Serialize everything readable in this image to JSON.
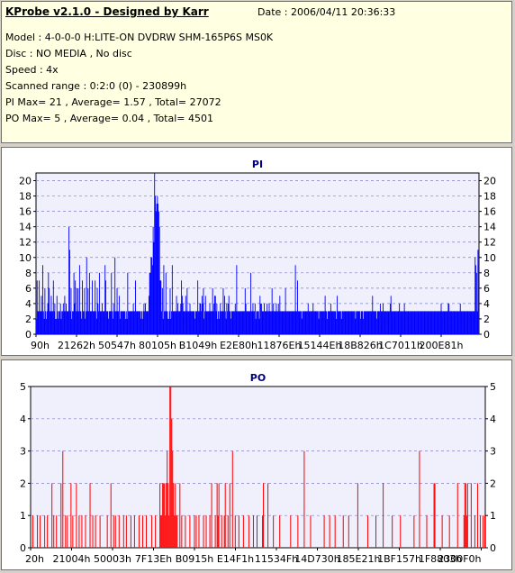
{
  "header": {
    "title": "KProbe v2.1.0 - Designed by Karr",
    "date": "Date : 2006/04/11 20:36:33",
    "model": "Model : 4-0-0-0 H:LITE-ON DVDRW SHM-165P6S MS0K",
    "disc": "Disc : NO MEDIA , No disc",
    "speed": "Speed : 4x",
    "scanned_range": "Scanned range : 0:2:0 (0) - 230899h",
    "pi_summary": "PI Max= 21 , Average= 1.57 , Total= 27072",
    "po_summary": "PO Max= 5 , Average= 0.04 , Total= 4501"
  },
  "chart_data": [
    {
      "type": "bar",
      "title": "PI",
      "ylim": [
        0,
        21
      ],
      "yticks": [
        0,
        2,
        4,
        6,
        8,
        10,
        12,
        14,
        16,
        18,
        20
      ],
      "x_tick_labels": [
        "90h",
        "21262h",
        "50547h",
        "80105h",
        "B1049h",
        "E2E80h",
        "11876Eh",
        "15144Eh",
        "18B826h",
        "1C7011h",
        "200E81h"
      ],
      "color": "#0000ff",
      "max": 21,
      "average": 1.57,
      "total": 27072,
      "grid": true,
      "values": [
        2,
        7,
        3,
        3,
        7,
        3,
        3,
        5,
        3,
        9,
        3,
        2,
        6,
        3,
        2,
        3,
        4,
        8,
        6,
        3,
        3,
        5,
        3,
        3,
        7,
        3,
        4,
        2,
        2,
        5,
        3,
        2,
        3,
        3,
        4,
        2,
        3,
        3,
        4,
        3,
        5,
        3,
        4,
        3,
        3,
        3,
        14,
        11,
        3,
        6,
        2,
        3,
        3,
        8,
        4,
        7,
        3,
        6,
        3,
        6,
        3,
        9,
        3,
        3,
        2,
        7,
        3,
        3,
        6,
        2,
        3,
        10,
        3,
        6,
        3,
        8,
        3,
        3,
        3,
        7,
        3,
        3,
        3,
        7,
        3,
        2,
        6,
        4,
        3,
        8,
        3,
        3,
        3,
        4,
        3,
        3,
        3,
        9,
        7,
        3,
        3,
        3,
        2,
        3,
        3,
        3,
        8,
        3,
        2,
        4,
        3,
        10,
        3,
        3,
        6,
        3,
        3,
        5,
        2,
        3,
        3,
        3,
        3,
        3,
        3,
        3,
        2,
        3,
        2,
        8,
        3,
        3,
        3,
        3,
        3,
        3,
        3,
        4,
        3,
        3,
        7,
        3,
        3,
        3,
        3,
        3,
        3,
        3,
        2,
        3,
        2,
        3,
        4,
        3,
        4,
        3,
        3,
        3,
        3,
        5,
        8,
        8,
        10,
        10,
        9,
        14,
        12,
        21,
        18,
        16,
        17,
        18,
        17,
        16,
        14,
        7,
        7,
        3,
        6,
        2,
        9,
        3,
        3,
        8,
        3,
        3,
        2,
        2,
        3,
        6,
        2,
        3,
        9,
        3,
        3,
        3,
        3,
        3,
        5,
        3,
        4,
        3,
        3,
        3,
        4,
        7,
        5,
        4,
        3,
        3,
        3,
        5,
        3,
        6,
        3,
        3,
        3,
        4,
        3,
        3,
        3,
        3,
        3,
        3,
        2,
        3,
        3,
        3,
        7,
        3,
        3,
        4,
        4,
        3,
        5,
        4,
        6,
        2,
        3,
        5,
        3,
        3,
        3,
        3,
        3,
        4,
        3,
        3,
        3,
        6,
        3,
        4,
        5,
        5,
        3,
        4,
        2,
        3,
        2,
        3,
        4,
        3,
        3,
        3,
        6,
        3,
        5,
        3,
        2,
        4,
        3,
        4,
        5,
        3,
        3,
        2,
        3,
        3,
        3,
        3,
        3,
        4,
        3,
        9,
        3,
        3,
        3,
        3,
        3,
        3,
        3,
        3,
        3,
        3,
        3,
        6,
        4,
        3,
        3,
        3,
        3,
        3,
        3,
        8,
        3,
        3,
        4,
        3,
        3,
        4,
        2,
        3,
        3,
        3,
        3,
        2,
        5,
        4,
        4,
        3,
        3,
        3,
        4,
        3,
        3,
        3,
        4,
        3,
        3,
        4,
        3,
        3,
        3,
        6,
        3,
        4,
        3,
        3,
        3,
        4,
        3,
        3,
        4,
        3,
        5,
        3,
        3,
        3,
        3,
        3,
        3,
        3,
        6,
        3,
        3,
        3,
        3,
        3,
        3,
        3,
        3,
        3,
        3,
        3,
        3,
        3,
        9,
        3,
        3,
        7,
        3,
        3,
        3,
        3,
        3,
        2,
        3,
        3,
        3,
        3,
        3,
        3,
        3,
        3,
        4,
        3,
        3,
        3,
        3,
        3,
        3,
        4,
        3,
        3,
        3,
        3,
        3,
        3,
        3,
        2,
        3,
        3,
        3,
        3,
        3,
        3,
        3,
        3,
        5,
        3,
        3,
        2,
        3,
        3,
        3,
        3,
        4,
        3,
        3,
        3,
        3,
        3,
        3,
        3,
        2,
        5,
        3,
        3,
        3,
        3,
        3,
        2,
        3,
        3,
        3,
        3,
        3,
        3,
        3,
        3,
        3,
        3,
        3,
        3,
        3,
        3,
        3,
        3,
        3,
        3,
        3,
        2,
        3,
        3,
        3,
        3,
        3,
        3,
        2,
        3,
        3,
        3,
        2,
        3,
        3,
        3,
        3,
        3,
        3,
        3,
        3,
        3,
        3,
        3,
        3,
        5,
        3,
        3,
        3,
        3,
        3,
        2,
        3,
        3,
        3,
        3,
        4,
        3,
        3,
        3,
        4,
        3,
        3,
        3,
        3,
        3,
        3,
        3,
        3,
        3,
        4,
        5,
        3,
        3,
        3,
        3,
        3,
        3,
        3,
        3,
        3,
        3,
        3,
        4,
        3,
        3,
        3,
        3,
        3,
        3,
        4,
        3,
        3,
        3,
        3,
        3,
        3,
        3,
        3,
        3,
        3,
        3,
        3,
        3,
        3,
        3,
        3,
        3,
        3,
        3,
        3,
        3,
        3,
        3,
        3,
        3,
        3,
        3,
        3,
        3,
        3,
        3,
        3,
        3,
        3,
        3,
        3,
        3,
        3,
        3,
        3,
        3,
        3,
        3,
        3,
        3,
        3,
        3,
        3,
        3,
        3,
        3,
        4,
        3,
        3,
        3,
        3,
        3,
        3,
        3,
        3,
        3,
        4,
        4,
        3,
        3,
        3,
        3,
        3,
        3,
        3,
        3,
        3,
        3,
        3,
        3,
        3,
        3,
        3,
        4,
        3,
        3,
        3,
        3,
        3,
        3,
        3,
        3,
        3,
        3,
        3,
        3,
        3,
        3,
        3,
        3,
        3,
        3,
        3,
        3,
        10,
        9,
        8,
        3,
        11,
        9
      ]
    },
    {
      "type": "bar",
      "title": "PO",
      "ylim": [
        0,
        5
      ],
      "yticks": [
        0,
        1,
        2,
        3,
        4,
        5
      ],
      "x_tick_labels": [
        "20h",
        "21004h",
        "50003h",
        "7F13Eh",
        "B0915h",
        "E14F1h",
        "11534Fh",
        "14D730h",
        "185E21h",
        "1BF157h",
        "1F8803h",
        "2300F0h"
      ],
      "color": "#ff0000",
      "max": 5,
      "average": 0.04,
      "total": 4501,
      "grid": true,
      "values": [
        0,
        0,
        1,
        0,
        0,
        0,
        0,
        1,
        0,
        0,
        1,
        0,
        0,
        0,
        0,
        1,
        0,
        0,
        1,
        0,
        0,
        0,
        0,
        2,
        0,
        1,
        0,
        0,
        1,
        0,
        0,
        0,
        0,
        2,
        0,
        3,
        0,
        0,
        1,
        0,
        1,
        0,
        0,
        0,
        2,
        0,
        1,
        0,
        0,
        0,
        2,
        0,
        0,
        1,
        0,
        0,
        1,
        0,
        0,
        0,
        1,
        0,
        0,
        0,
        0,
        2,
        0,
        0,
        1,
        0,
        0,
        1,
        0,
        0,
        0,
        0,
        1,
        0,
        0,
        0,
        0,
        0,
        0,
        0,
        1,
        0,
        0,
        0,
        2,
        0,
        0,
        1,
        0,
        1,
        0,
        0,
        0,
        1,
        0,
        0,
        0,
        0,
        1,
        0,
        0,
        1,
        0,
        0,
        0,
        0,
        1,
        0,
        0,
        0,
        1,
        0,
        0,
        0,
        0,
        1,
        0,
        0,
        0,
        1,
        0,
        0,
        0,
        1,
        0,
        0,
        0,
        0,
        0,
        1,
        0,
        0,
        0,
        1,
        0,
        0,
        0,
        0,
        2,
        1,
        1,
        2,
        2,
        2,
        1,
        2,
        3,
        2,
        1,
        5,
        5,
        4,
        3,
        2,
        1,
        2,
        1,
        1,
        0,
        0,
        2,
        0,
        1,
        0,
        0,
        0,
        1,
        0,
        0,
        0,
        0,
        1,
        0,
        0,
        0,
        0,
        1,
        0,
        1,
        0,
        0,
        1,
        0,
        0,
        0,
        0,
        1,
        0,
        0,
        1,
        0,
        0,
        0,
        1,
        0,
        2,
        0,
        0,
        0,
        1,
        0,
        2,
        1,
        2,
        0,
        0,
        1,
        0,
        0,
        1,
        2,
        0,
        0,
        1,
        0,
        2,
        0,
        0,
        3,
        0,
        0,
        1,
        0,
        0,
        0,
        1,
        0,
        0,
        0,
        0,
        1,
        0,
        0,
        0,
        0,
        0,
        1,
        0,
        0,
        0,
        0,
        1,
        0,
        0,
        0,
        1,
        0,
        0,
        0,
        0,
        0,
        1,
        2,
        0,
        0,
        0,
        0,
        2,
        0,
        0,
        0,
        0,
        0,
        1,
        0,
        0,
        0,
        0,
        0,
        0,
        1,
        0,
        0,
        0,
        0,
        0,
        0,
        0,
        0,
        0,
        0,
        0,
        1,
        0,
        0,
        0,
        0,
        0,
        0,
        0,
        1,
        0,
        0,
        0,
        0,
        0,
        0,
        3,
        0,
        0,
        0,
        0,
        0,
        0,
        1,
        0,
        0,
        0,
        0,
        0,
        0,
        0,
        0,
        0,
        0,
        0,
        0,
        0,
        0,
        1,
        0,
        0,
        0,
        0,
        0,
        1,
        0,
        0,
        0,
        0,
        0,
        1,
        0,
        0,
        0,
        0,
        0,
        0,
        0,
        0,
        1,
        0,
        0,
        0,
        0,
        0,
        1,
        0,
        0,
        0,
        0,
        0,
        0,
        0,
        0,
        0,
        2,
        0,
        0,
        0,
        0,
        0,
        0,
        0,
        0,
        0,
        0,
        1,
        0,
        0,
        0,
        0,
        0,
        0,
        0,
        0,
        1,
        0,
        0,
        0,
        0,
        0,
        0,
        0,
        2,
        0,
        0,
        0,
        0,
        0,
        0,
        0,
        0,
        0,
        1,
        0,
        0,
        0,
        0,
        0,
        0,
        0,
        0,
        1,
        0,
        0,
        0,
        0,
        0,
        0,
        0,
        0,
        0,
        0,
        0,
        0,
        0,
        0,
        1,
        0,
        0,
        0,
        0,
        0,
        3,
        0,
        0,
        0,
        0,
        0,
        0,
        0,
        1,
        0,
        0,
        0,
        0,
        0,
        0,
        0,
        2,
        2,
        0,
        0,
        0,
        0,
        0,
        0,
        0,
        1,
        0,
        0,
        0,
        0,
        0,
        0,
        0,
        1,
        0,
        0,
        0,
        0,
        0,
        0,
        0,
        0,
        2,
        0,
        0,
        0,
        0,
        0,
        0,
        1,
        2,
        2,
        1,
        2,
        0,
        0,
        0,
        2,
        0,
        0,
        0,
        1,
        0,
        0,
        2,
        0,
        0,
        1,
        0,
        0,
        1,
        0,
        1
      ]
    }
  ]
}
